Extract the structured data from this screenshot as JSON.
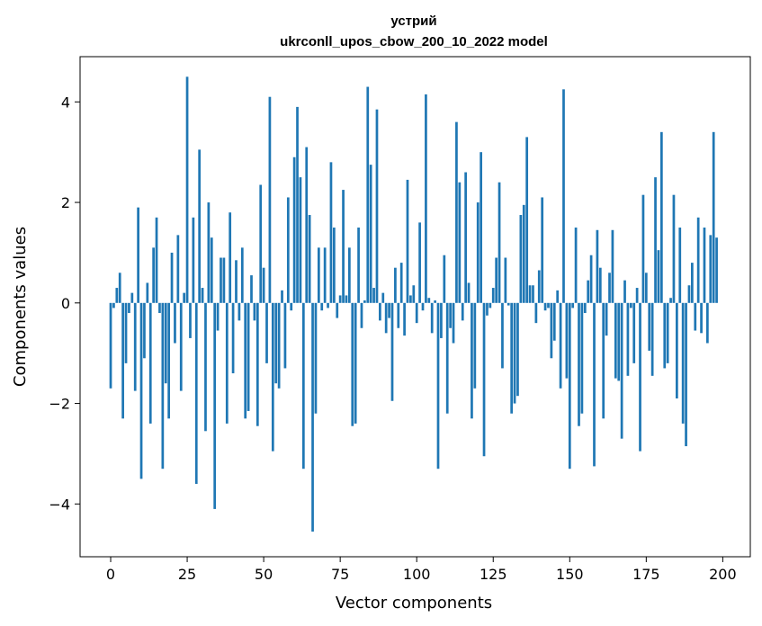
{
  "chart_data": {
    "type": "bar",
    "title": "устрий",
    "subtitle": "ukrconll_upos_cbow_200_10_2022 model",
    "xlabel": "Vector components",
    "ylabel": "Components values",
    "xlim": [
      -10,
      209
    ],
    "ylim": [
      -5.05,
      4.9
    ],
    "xticks": [
      0,
      25,
      50,
      75,
      100,
      125,
      150,
      175,
      200
    ],
    "yticks": [
      -4,
      -2,
      0,
      2,
      4
    ],
    "ytick_labels": [
      "−4",
      "−2",
      "0",
      "2",
      "4"
    ],
    "bar_color": "#1f77b4",
    "grid": false,
    "legend": "none",
    "values": [
      -1.7,
      -0.1,
      0.3,
      0.6,
      -2.3,
      -1.2,
      -0.2,
      0.2,
      -1.75,
      1.9,
      -3.5,
      -1.1,
      0.4,
      -2.4,
      1.1,
      1.7,
      -0.2,
      -3.3,
      -1.6,
      -2.3,
      1.0,
      -0.8,
      1.35,
      -1.75,
      0.2,
      4.5,
      -0.7,
      1.7,
      -3.6,
      3.05,
      0.3,
      -2.55,
      2.0,
      1.3,
      -4.1,
      -0.55,
      0.9,
      0.9,
      -2.4,
      1.8,
      -1.4,
      0.85,
      -0.35,
      1.1,
      -2.3,
      -2.15,
      0.55,
      -0.35,
      -2.45,
      2.35,
      0.7,
      -1.2,
      4.1,
      -2.95,
      -1.6,
      -1.7,
      0.25,
      -1.3,
      2.1,
      -0.15,
      2.9,
      3.9,
      2.5,
      -3.3,
      3.1,
      1.75,
      -4.55,
      -2.2,
      1.1,
      -0.15,
      1.1,
      -0.1,
      2.8,
      1.5,
      -0.3,
      0.15,
      2.25,
      0.15,
      1.1,
      -2.45,
      -2.4,
      1.5,
      -0.5,
      0.05,
      4.3,
      2.75,
      0.3,
      3.85,
      -0.35,
      0.2,
      -0.6,
      -0.3,
      -1.95,
      0.7,
      -0.5,
      0.8,
      -0.65,
      2.45,
      0.15,
      0.35,
      -0.4,
      1.6,
      -0.15,
      4.15,
      0.1,
      -0.6,
      0.05,
      -3.3,
      -0.7,
      0.95,
      -2.2,
      -0.5,
      -0.8,
      3.6,
      2.4,
      -0.35,
      2.6,
      0.4,
      -2.3,
      -1.7,
      2.0,
      3.0,
      -3.05,
      -0.25,
      -0.1,
      0.3,
      0.9,
      2.4,
      -1.3,
      0.9,
      -0.05,
      -2.2,
      -2.0,
      -1.85,
      1.75,
      1.95,
      3.3,
      0.35,
      0.35,
      -0.4,
      0.65,
      2.1,
      -0.15,
      -0.1,
      -1.1,
      -0.75,
      0.25,
      -1.7,
      4.25,
      -1.5,
      -3.3,
      -0.1,
      1.5,
      -2.45,
      -2.2,
      -0.2,
      0.45,
      0.95,
      -3.25,
      1.45,
      0.7,
      -2.3,
      -0.65,
      0.6,
      1.45,
      -1.5,
      -1.55,
      -2.7,
      0.45,
      -1.45,
      -0.1,
      -1.2,
      0.3,
      -2.95,
      2.15,
      0.6,
      -0.95,
      -1.45,
      2.5,
      1.05,
      3.4,
      -1.3,
      -1.2,
      0.1,
      2.15,
      -1.9,
      1.5,
      -2.4,
      -2.85,
      0.35,
      0.8,
      -0.55,
      1.7,
      -0.6,
      1.5,
      -0.8,
      1.35,
      3.4,
      1.3
    ]
  }
}
